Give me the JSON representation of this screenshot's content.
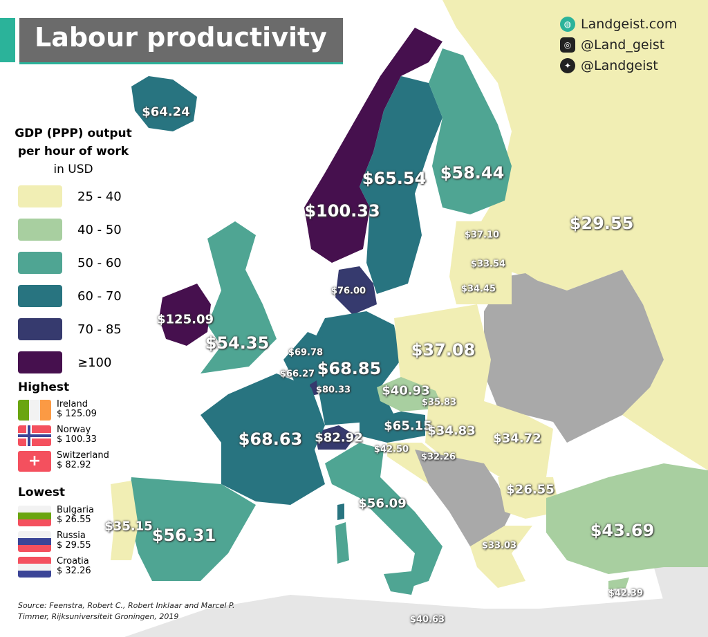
{
  "title": "Labour productivity",
  "social": {
    "website": "Landgeist.com",
    "instagram": "@Land_geist",
    "twitter": "@Landgeist"
  },
  "legend": {
    "title_line1": "GDP (PPP) output",
    "title_line2": "per hour of work",
    "title_line3": "in USD",
    "items": [
      {
        "label": "25 - 40",
        "color": "#f1eeb4"
      },
      {
        "label": "40 - 50",
        "color": "#a8cfa0"
      },
      {
        "label": "50 - 60",
        "color": "#4fa593"
      },
      {
        "label": "60 - 70",
        "color": "#287480"
      },
      {
        "label": "70 - 85",
        "color": "#363a6e"
      },
      {
        "label": "≥100",
        "color": "#46104e"
      }
    ]
  },
  "highest": {
    "heading": "Highest",
    "items": [
      {
        "country": "Ireland",
        "value": "$ 125.09"
      },
      {
        "country": "Norway",
        "value": "$ 100.33"
      },
      {
        "country": "Switzerland",
        "value": "$ 82.92"
      }
    ]
  },
  "lowest": {
    "heading": "Lowest",
    "items": [
      {
        "country": "Bulgaria",
        "value": "$ 26.55"
      },
      {
        "country": "Russia",
        "value": "$ 29.55"
      },
      {
        "country": "Croatia",
        "value": "$ 32.26"
      }
    ]
  },
  "source_line1": "Source: Feenstra, Robert C., Robert Inklaar and Marcel P.",
  "source_line2": "Timmer, Rijksuniversiteit Groningen, 2019",
  "no_data_color": "#a9a9a9",
  "values": {
    "iceland": "$64.24",
    "norway": "$100.33",
    "sweden": "$65.54",
    "finland": "$58.44",
    "russia": "$29.55",
    "estonia": "$37.10",
    "latvia": "$33.54",
    "lithuania": "$34.45",
    "denmark": "$76.00",
    "ireland": "$125.09",
    "uk": "$54.35",
    "netherlands": "$69.78",
    "belgium": "$66.27",
    "luxembourg": "$80.33",
    "germany": "$68.85",
    "poland": "$37.08",
    "czechia": "$40.93",
    "slovakia": "$35.83",
    "austria": "$65.15",
    "hungary": "$34.83",
    "romania": "$34.72",
    "slovenia": "$42.50",
    "croatia": "$32.26",
    "switzerland": "$82.92",
    "france": "$68.63",
    "italy": "$56.09",
    "bulgaria": "$26.55",
    "greece": "$33.03",
    "turkey": "$43.69",
    "cyprus": "$42.39",
    "malta": "$40.63",
    "spain": "$56.31",
    "portugal": "$35.15"
  }
}
